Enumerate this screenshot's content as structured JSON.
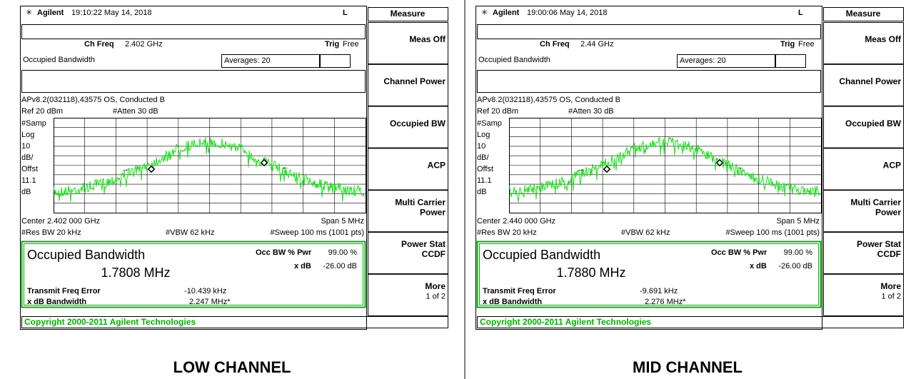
{
  "panels": [
    {
      "header": {
        "brand": "Agilent",
        "time_date": "19:10:22  May 14, 2018",
        "flag": "L"
      },
      "softkey_title": "Measure",
      "softkeys": [
        [
          "Meas Off"
        ],
        [
          "Channel Power"
        ],
        [
          "Occupied BW"
        ],
        [
          "ACP"
        ],
        [
          "Multi Carrier",
          "Power"
        ],
        [
          "Power Stat",
          "CCDF"
        ],
        [
          "More",
          "1 of 2"
        ]
      ],
      "ch_freq_label": "Ch Freq",
      "ch_freq": "2.402 GHz",
      "trig_label": "Trig",
      "trig": "Free",
      "meas_name": "Occupied Bandwidth",
      "averages": "Averages: 20",
      "setup": "APv8.2(032118),43575 OS, Conducted B",
      "ref": "Ref 20 dBm",
      "atten": "#Atten 30 dB",
      "scale_labels": [
        "#Samp",
        "Log",
        "10",
        "dB/",
        "Offst",
        "11.1",
        "dB"
      ],
      "center": "Center 2.402 000 GHz",
      "span": "Span 5 MHz",
      "res_bw": "#Res BW 20 kHz",
      "vbw": "#VBW 62 kHz",
      "sweep": "#Sweep 100 ms (1001 pts)",
      "result": {
        "title": "Occupied Bandwidth",
        "obw": "1.7808 MHz",
        "pwr_label": "Occ BW % Pwr",
        "pwr": "99.00 %",
        "xdb_label": "x dB",
        "xdb": "-26.00 dB",
        "tfe_label": "Transmit Freq Error",
        "tfe": "-10.439 kHz",
        "xbw_label": "x dB Bandwidth",
        "xbw": "2.247 MHz*"
      },
      "copyright": "Copyright 2000-2011 Agilent Technologies",
      "caption": "LOW CHANNEL"
    },
    {
      "header": {
        "brand": "Agilent",
        "time_date": "19:00:06  May 14, 2018",
        "flag": "L"
      },
      "softkey_title": "Measure",
      "softkeys": [
        [
          "Meas Off"
        ],
        [
          "Channel Power"
        ],
        [
          "Occupied BW"
        ],
        [
          "ACP"
        ],
        [
          "Multi Carrier",
          "Power"
        ],
        [
          "Power Stat",
          "CCDF"
        ],
        [
          "More",
          "1 of 2"
        ]
      ],
      "ch_freq_label": "Ch Freq",
      "ch_freq": "2.44 GHz",
      "trig_label": "Trig",
      "trig": "Free",
      "meas_name": "Occupied Bandwidth",
      "averages": "Averages: 20",
      "setup": "APv8.2(032118),43575 OS, Conducted B",
      "ref": "Ref 20 dBm",
      "atten": "#Atten 30 dB",
      "scale_labels": [
        "#Samp",
        "Log",
        "10",
        "dB/",
        "Offst",
        "11.1",
        "dB"
      ],
      "center": "Center 2.440 000 GHz",
      "span": "Span 5 MHz",
      "res_bw": "#Res BW 20 kHz",
      "vbw": "#VBW 62 kHz",
      "sweep": "#Sweep 100 ms (1001 pts)",
      "result": {
        "title": "Occupied Bandwidth",
        "obw": "1.7880 MHz",
        "pwr_label": "Occ BW % Pwr",
        "pwr": "99.00 %",
        "xdb_label": "x dB",
        "xdb": "-26.00 dB",
        "tfe_label": "Transmit Freq Error",
        "tfe": "-9.691 kHz",
        "xbw_label": "x dB Bandwidth",
        "xbw": "2.276 MHz*"
      },
      "copyright": "Copyright 2000-2011 Agilent Technologies",
      "caption": "MID CHANNEL"
    }
  ]
}
